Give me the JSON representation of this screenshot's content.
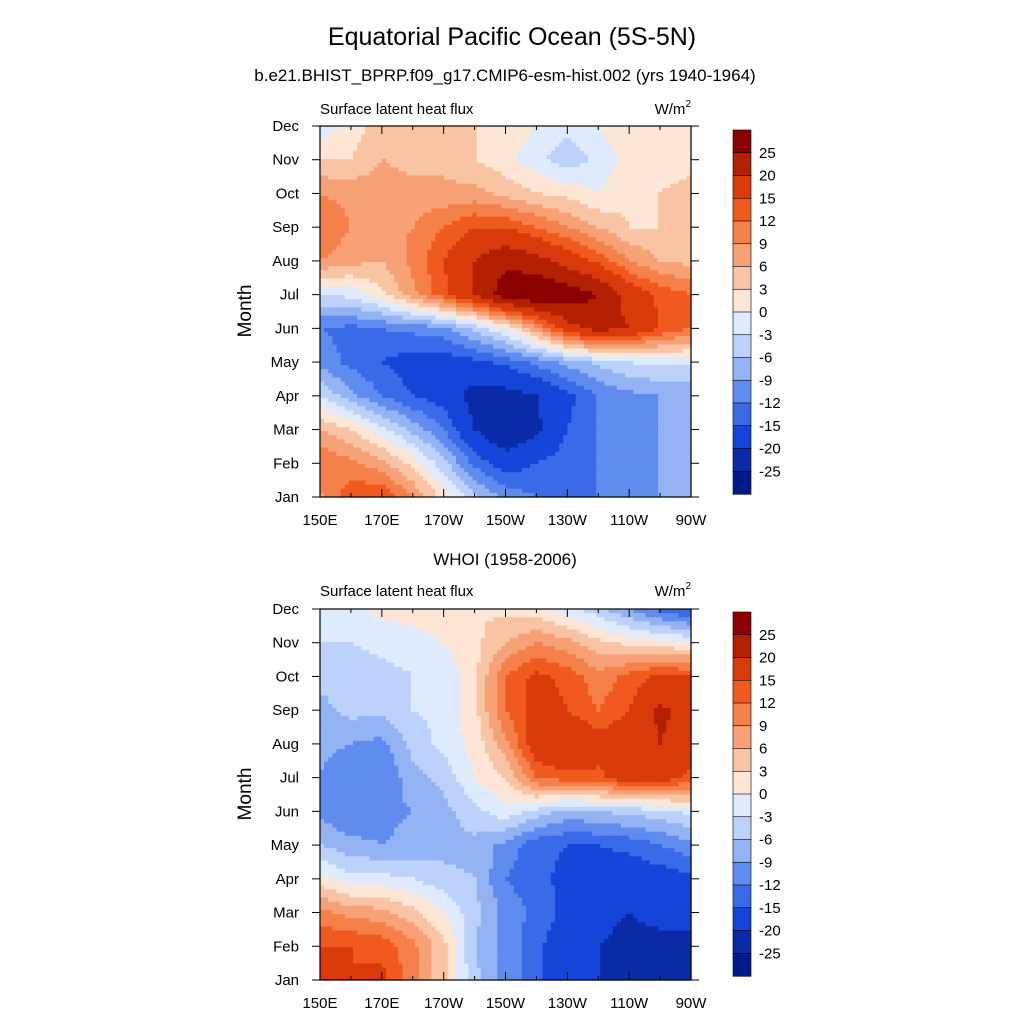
{
  "figure": {
    "title": "Equatorial Pacific Ocean (5S-5N)",
    "subtitle": "b.e21.BHIST_BPRP.f09_g17.CMIP6-esm-hist.002 (yrs 1940-1964)"
  },
  "colorbar": {
    "levels": [
      "25",
      "20",
      "15",
      "12",
      "9",
      "6",
      "3",
      "0",
      "-3",
      "-6",
      "-9",
      "-12",
      "-15",
      "-20",
      "-25"
    ],
    "colors": [
      "#8b0000",
      "#b22000",
      "#d93a0a",
      "#f05a1e",
      "#f5804a",
      "#f7a177",
      "#f9c4a4",
      "#fde6d6",
      "#dfeafc",
      "#bcd2fa",
      "#93b3f3",
      "#5f8cee",
      "#3a6ae8",
      "#1545d8",
      "#0a2ba8",
      "#001a8a"
    ]
  },
  "chart_data": [
    {
      "type": "heatmap",
      "panel_title": "",
      "left_label": "Surface latent heat flux",
      "units_base": "W/m",
      "units_exp": "2",
      "ylabel": "Month",
      "x_tick_labels": [
        "150E",
        "170E",
        "170W",
        "150W",
        "130W",
        "110W",
        "90W"
      ],
      "x_ticks_deg": [
        150,
        170,
        190,
        210,
        230,
        250,
        270
      ],
      "xlim_deg": [
        150,
        270
      ],
      "y_tick_labels": [
        "Jan",
        "Feb",
        "Mar",
        "Apr",
        "May",
        "Jun",
        "Jul",
        "Aug",
        "Sep",
        "Oct",
        "Nov",
        "Dec"
      ],
      "ylim_month": [
        1,
        12
      ],
      "z_grid_lon": [
        150,
        160,
        170,
        180,
        190,
        200,
        210,
        220,
        230,
        240,
        250,
        260,
        270
      ],
      "z_grid_month": [
        "Jan",
        "Feb",
        "Mar",
        "Apr",
        "May",
        "Jun",
        "Jul",
        "Aug",
        "Sep",
        "Oct",
        "Nov",
        "Dec"
      ],
      "z": [
        [
          8,
          14,
          15,
          9,
          2,
          -5,
          -10,
          -12,
          -12,
          -12,
          -10,
          -9,
          -9
        ],
        [
          12,
          10,
          7,
          2,
          -5,
          -13,
          -17,
          -15,
          -13,
          -12,
          -10,
          -9,
          -9
        ],
        [
          6,
          3,
          -2,
          -7,
          -12,
          -20,
          -25,
          -21,
          -15,
          -12,
          -10,
          -9,
          -9
        ],
        [
          -3,
          -8,
          -12,
          -15,
          -17,
          -22,
          -22,
          -20,
          -16,
          -12,
          -10,
          -9,
          -9
        ],
        [
          -10,
          -13,
          -15,
          -17,
          -17,
          -16,
          -14,
          -11,
          -8,
          -5,
          -3,
          -2,
          -2
        ],
        [
          -12,
          -13,
          -12,
          -11,
          -10,
          -5,
          0,
          8,
          18,
          22,
          20,
          15,
          12
        ],
        [
          -3,
          -2,
          2,
          8,
          14,
          20,
          28,
          30,
          28,
          25,
          18,
          14,
          12
        ],
        [
          9,
          7,
          6,
          10,
          15,
          20,
          24,
          22,
          18,
          14,
          9,
          6,
          5
        ],
        [
          12,
          9,
          8,
          9,
          12,
          15,
          15,
          12,
          9,
          6,
          3,
          3,
          4
        ],
        [
          9,
          8,
          8,
          7,
          7,
          7,
          5,
          3,
          2,
          0,
          2,
          3,
          4
        ],
        [
          3,
          3,
          6,
          5,
          5,
          3,
          1,
          -2,
          -5,
          -2,
          1,
          2,
          2
        ],
        [
          -2,
          1,
          5,
          5,
          5,
          3,
          2,
          0,
          -2,
          0,
          2,
          2,
          1
        ]
      ]
    },
    {
      "type": "heatmap",
      "panel_title": "WHOI (1958-2006)",
      "left_label": "Surface latent heat flux",
      "units_base": "W/m",
      "units_exp": "2",
      "ylabel": "Month",
      "x_tick_labels": [
        "150E",
        "170E",
        "170W",
        "150W",
        "130W",
        "110W",
        "90W"
      ],
      "x_ticks_deg": [
        150,
        170,
        190,
        210,
        230,
        250,
        270
      ],
      "xlim_deg": [
        150,
        270
      ],
      "y_tick_labels": [
        "Jan",
        "Feb",
        "Mar",
        "Apr",
        "May",
        "Jun",
        "Jul",
        "Aug",
        "Sep",
        "Oct",
        "Nov",
        "Dec"
      ],
      "ylim_month": [
        1,
        12
      ],
      "z_grid_lon": [
        150,
        160,
        170,
        180,
        190,
        200,
        210,
        220,
        230,
        240,
        250,
        260,
        270
      ],
      "z_grid_month": [
        "Jan",
        "Feb",
        "Mar",
        "Apr",
        "May",
        "Jun",
        "Jul",
        "Aug",
        "Sep",
        "Oct",
        "Nov",
        "Dec"
      ],
      "z": [
        [
          16,
          15,
          16,
          10,
          4,
          -5,
          -10,
          -14,
          -18,
          -20,
          -22,
          -24,
          -25
        ],
        [
          15,
          15,
          14,
          10,
          4,
          -6,
          -10,
          -14,
          -18,
          -20,
          -22,
          -22,
          -22
        ],
        [
          10,
          8,
          7,
          4,
          0,
          -5,
          -10,
          -13,
          -16,
          -18,
          -20,
          -18,
          -18
        ],
        [
          1,
          -2,
          -2,
          -3,
          -5,
          -6,
          -12,
          -14,
          -16,
          -17,
          -18,
          -17,
          -16
        ],
        [
          -6,
          -8,
          -9,
          -8,
          -7,
          -7,
          -10,
          -14,
          -15,
          -15,
          -14,
          -12,
          -10
        ],
        [
          -10,
          -12,
          -10,
          -9,
          -7,
          -4,
          -1,
          -4,
          -7,
          -6,
          -5,
          -4,
          -2
        ],
        [
          -9,
          -12,
          -12,
          -7,
          -5,
          0,
          3,
          12,
          14,
          14,
          18,
          18,
          14
        ],
        [
          -8,
          -9,
          -10,
          -5,
          -2,
          1,
          8,
          18,
          20,
          17,
          18,
          20,
          18
        ],
        [
          -7,
          -5,
          -5,
          -3,
          -2,
          2,
          12,
          17,
          15,
          12,
          15,
          21,
          18
        ],
        [
          -5,
          -5,
          -4,
          -3,
          -2,
          2,
          12,
          16,
          14,
          10,
          13,
          16,
          15
        ],
        [
          -3,
          -3,
          -2,
          -2,
          0,
          2,
          6,
          9,
          7,
          4,
          2,
          1,
          0
        ],
        [
          -2,
          -1,
          1,
          2,
          3,
          3,
          2,
          1,
          -2,
          -5,
          -9,
          -13,
          -16
        ]
      ]
    }
  ]
}
